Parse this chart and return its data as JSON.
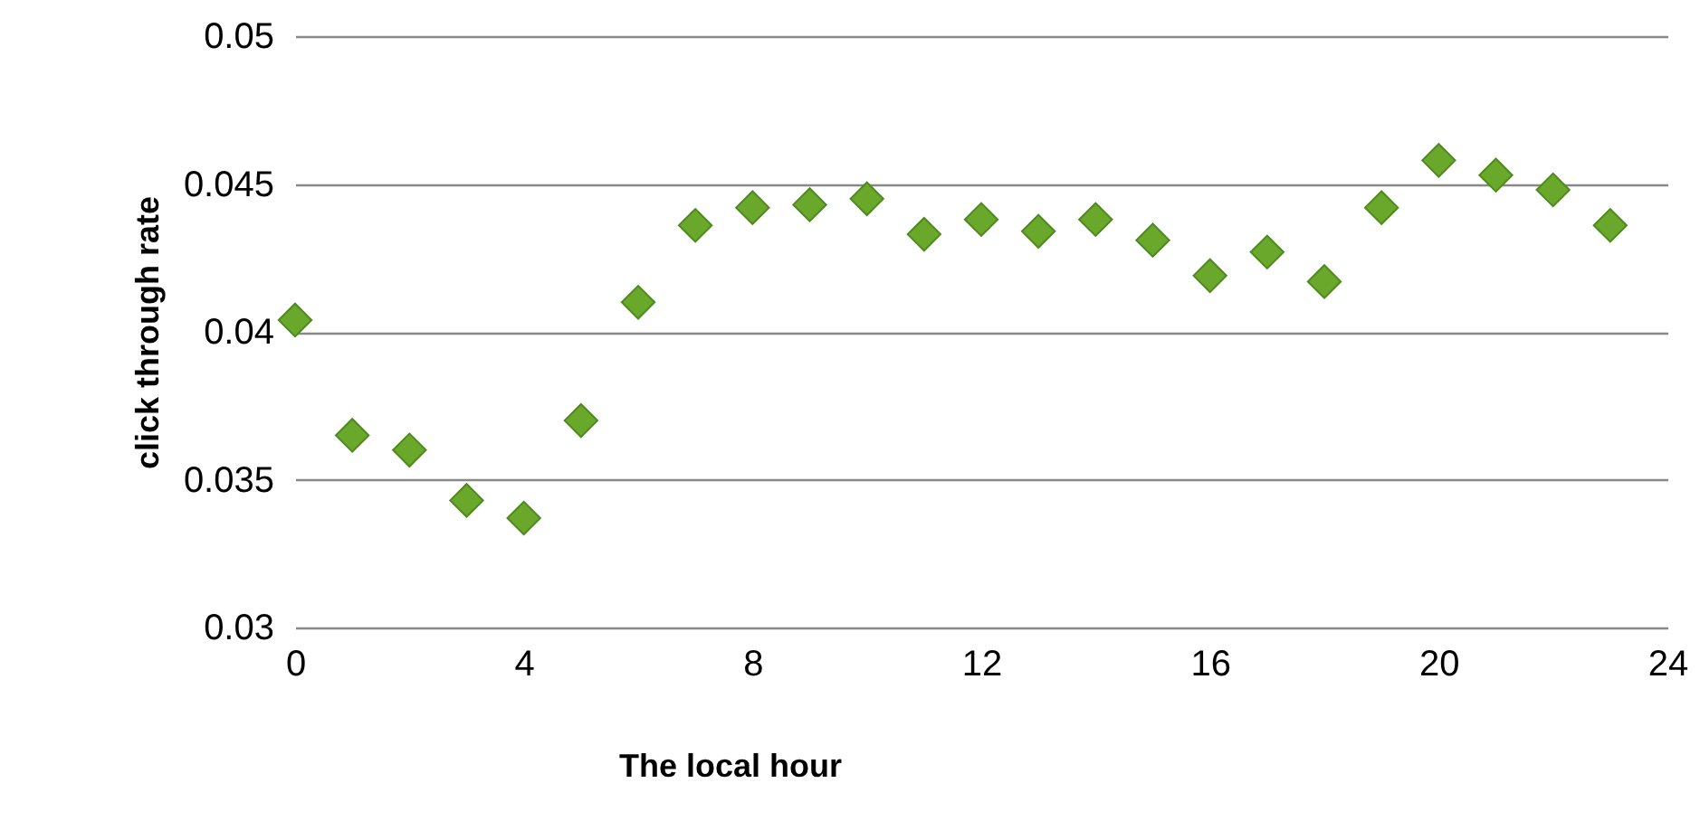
{
  "chart_data": {
    "type": "scatter",
    "xlabel": "The local hour",
    "ylabel": "click through rate",
    "x": [
      0,
      1,
      2,
      3,
      4,
      5,
      6,
      7,
      8,
      9,
      10,
      11,
      12,
      13,
      14,
      15,
      16,
      17,
      18,
      19,
      20,
      21,
      22,
      23
    ],
    "series": [
      {
        "color": "#6aa82c",
        "values": [
          0.0404,
          0.0365,
          0.036,
          0.0343,
          0.0337,
          0.037,
          0.041,
          0.0436,
          0.0442,
          0.0443,
          0.0445,
          0.0433,
          0.0438,
          0.0434,
          0.0438,
          0.0431,
          0.0419,
          0.0427,
          0.0417,
          0.0442,
          0.0458,
          0.0453,
          0.0448,
          0.0436
        ]
      }
    ],
    "xlim": [
      0,
      24
    ],
    "xticks": [
      0,
      4,
      8,
      12,
      16,
      20,
      24
    ],
    "ylim": [
      0.03,
      0.05
    ],
    "yticks": [
      0.03,
      0.035,
      0.04,
      0.045,
      0.05
    ],
    "grid": "y",
    "marker": "diamond"
  }
}
